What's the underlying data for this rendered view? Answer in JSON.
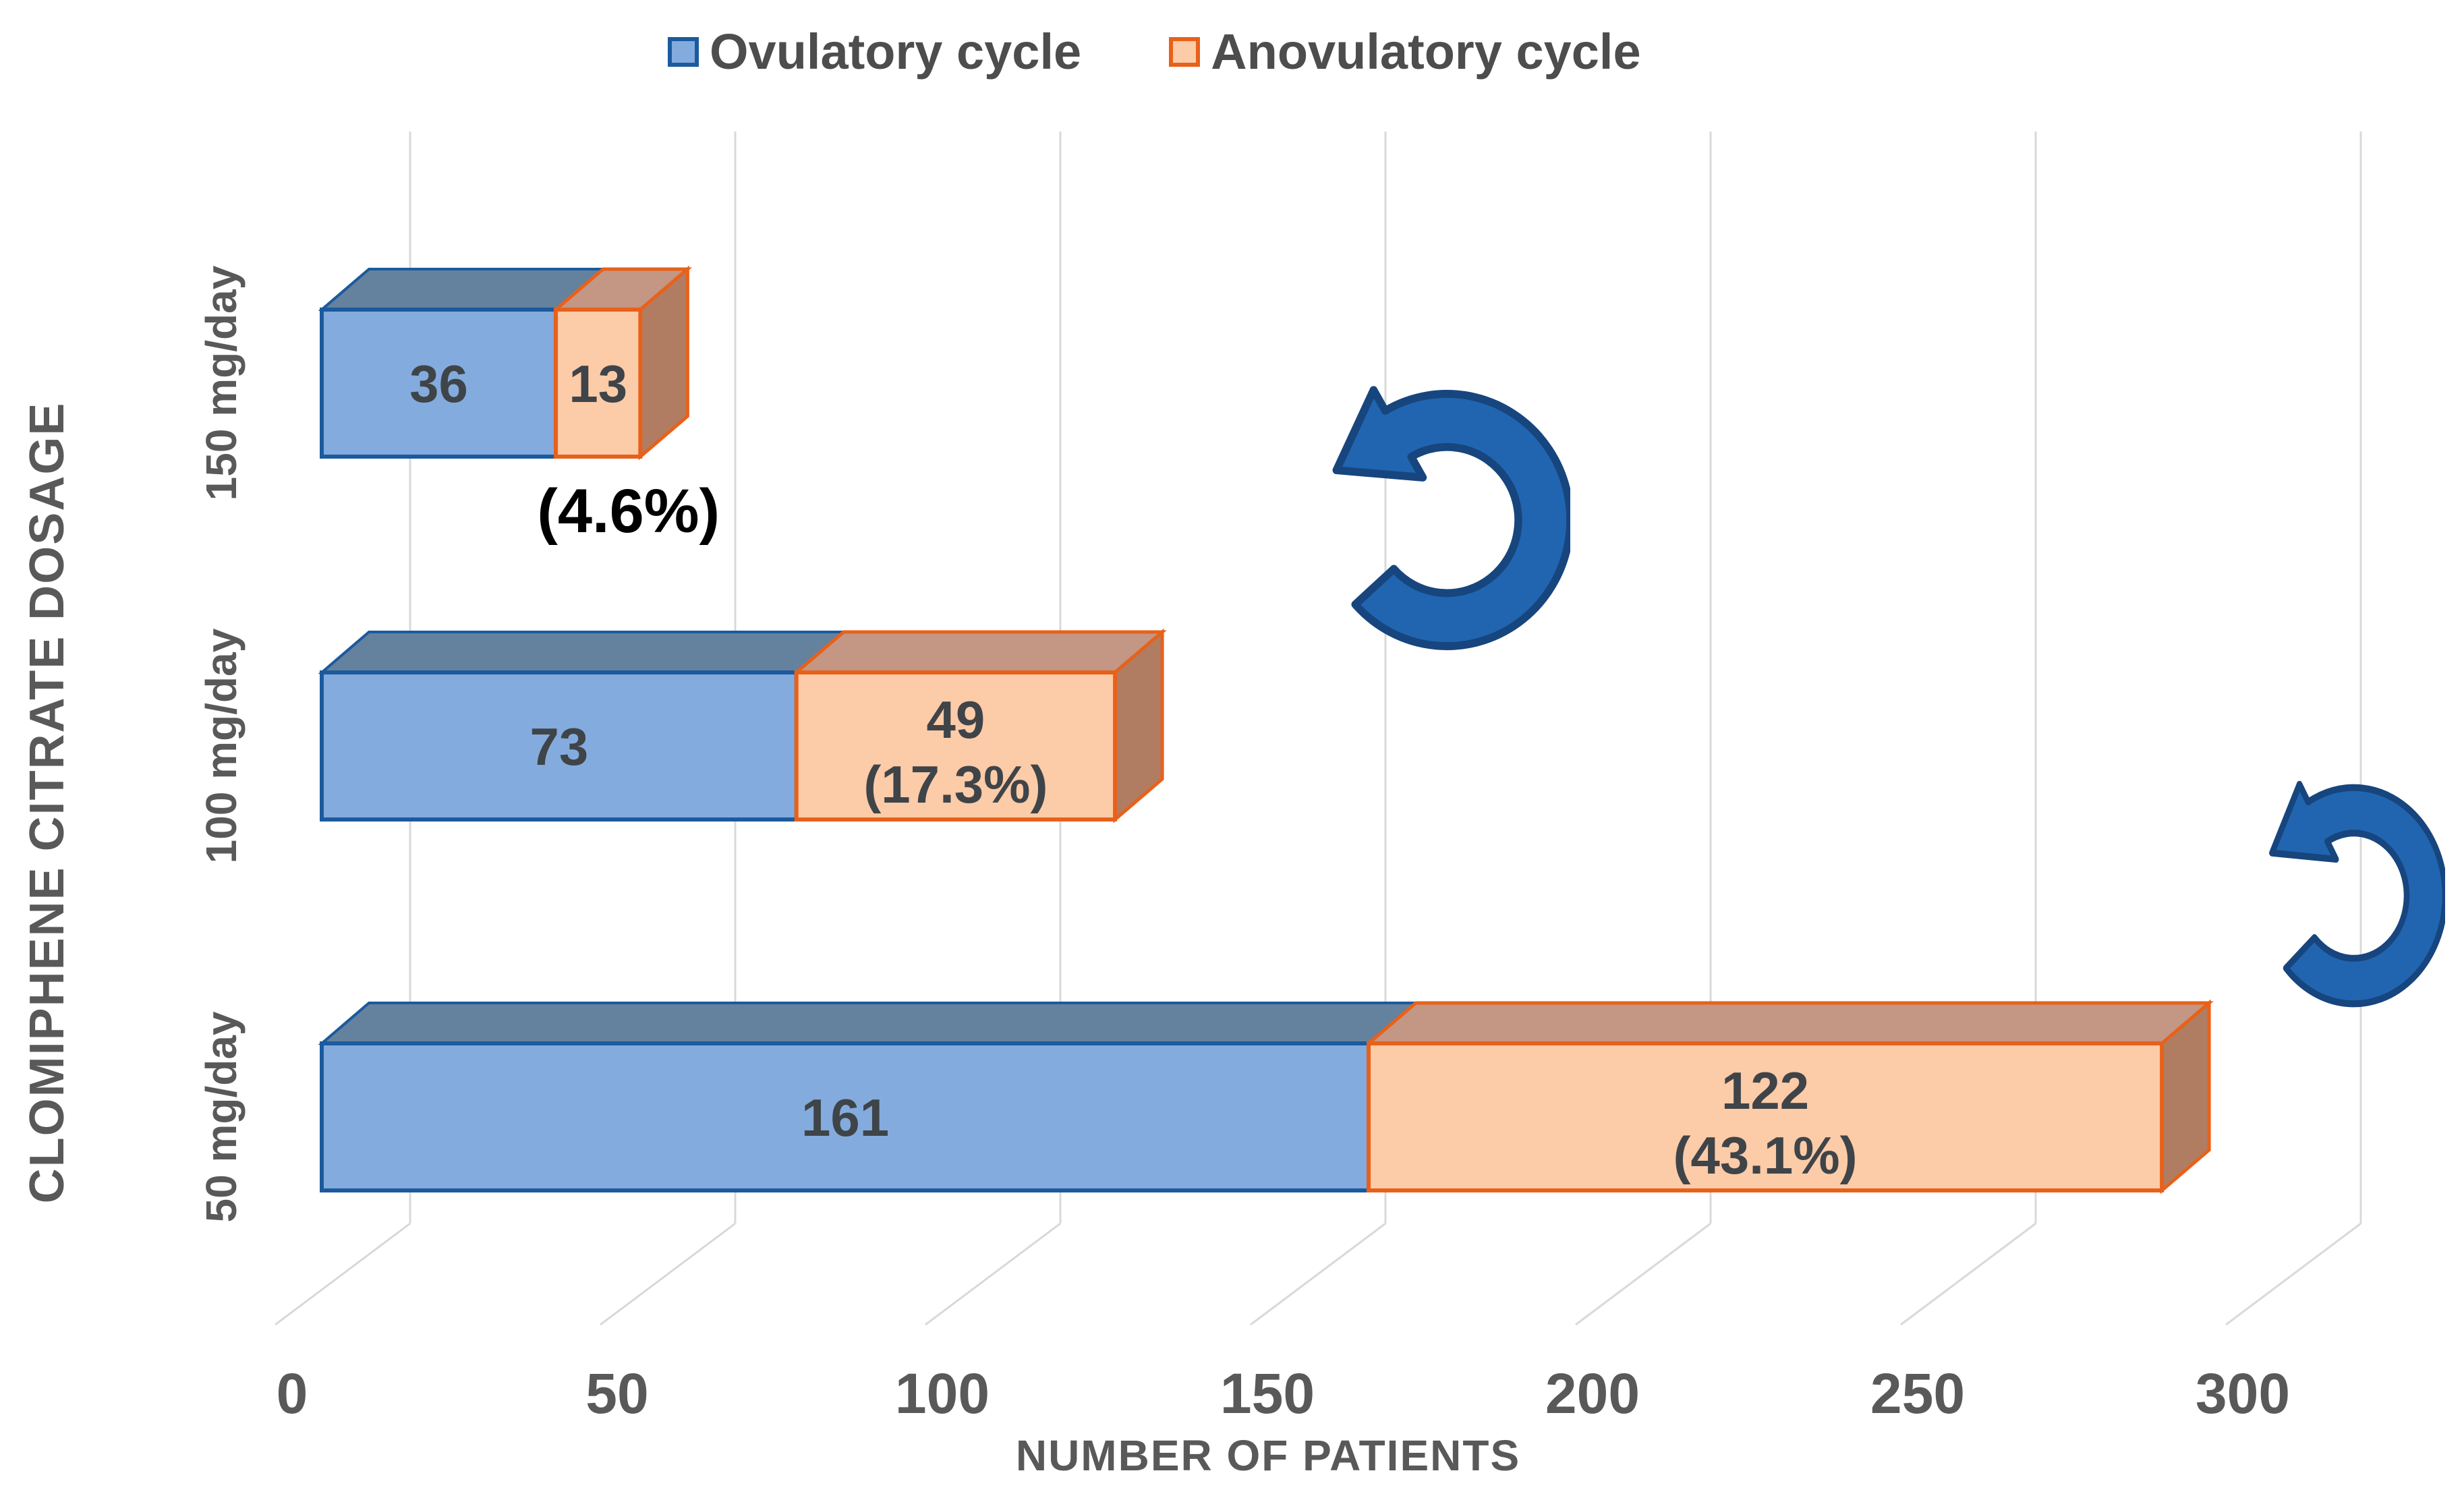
{
  "legend": {
    "items": [
      {
        "label": "Ovulatory cycle",
        "swatch": "blue"
      },
      {
        "label": "Anovulatory cycle",
        "swatch": "orange"
      }
    ]
  },
  "chart_data": {
    "type": "bar",
    "subtype": "horizontal-stacked-3d",
    "categories": [
      "150 mg/day",
      "100 mg/day",
      "50 mg/day"
    ],
    "series": [
      {
        "name": "Ovulatory cycle",
        "values": [
          36,
          73,
          161
        ],
        "color": "#84ABDD"
      },
      {
        "name": "Anovulatory cycle",
        "values": [
          13,
          49,
          122
        ],
        "color": "#FCCBA8"
      }
    ],
    "segment_percent_labels": {
      "series": "Anovulatory cycle",
      "labels": [
        "(4.6%)",
        "(17.3%)",
        "(43.1%)"
      ],
      "placement": [
        "below-bar",
        "inside",
        "inside"
      ]
    },
    "xlabel": "NUMBER OF PATIENTS",
    "ylabel": "CLOMIPHENE CITRATE DOSAGE",
    "x_ticks": [
      0,
      50,
      100,
      150,
      200,
      250,
      300
    ],
    "xlim": [
      0,
      300
    ],
    "grid": "vertical-gridlines",
    "legend_position": "top-center"
  },
  "decorations": {
    "curved_arrow_count": 2,
    "arrow_fill": "#2165B0",
    "arrow_stroke": "#17457E"
  },
  "colors": {
    "front_blue": "#84ABDD",
    "border_blue": "#1B5A9E",
    "top_blue": "#64829E",
    "front_orange": "#FCCBA8",
    "border_orange": "#E8611A",
    "top_orange": "#C49684",
    "side_orange": "#B07D63",
    "gridline": "#D9D9D9",
    "axis_text": "#595959",
    "bar_value_text": "#3F4448",
    "percent_note_text": "#000000"
  }
}
